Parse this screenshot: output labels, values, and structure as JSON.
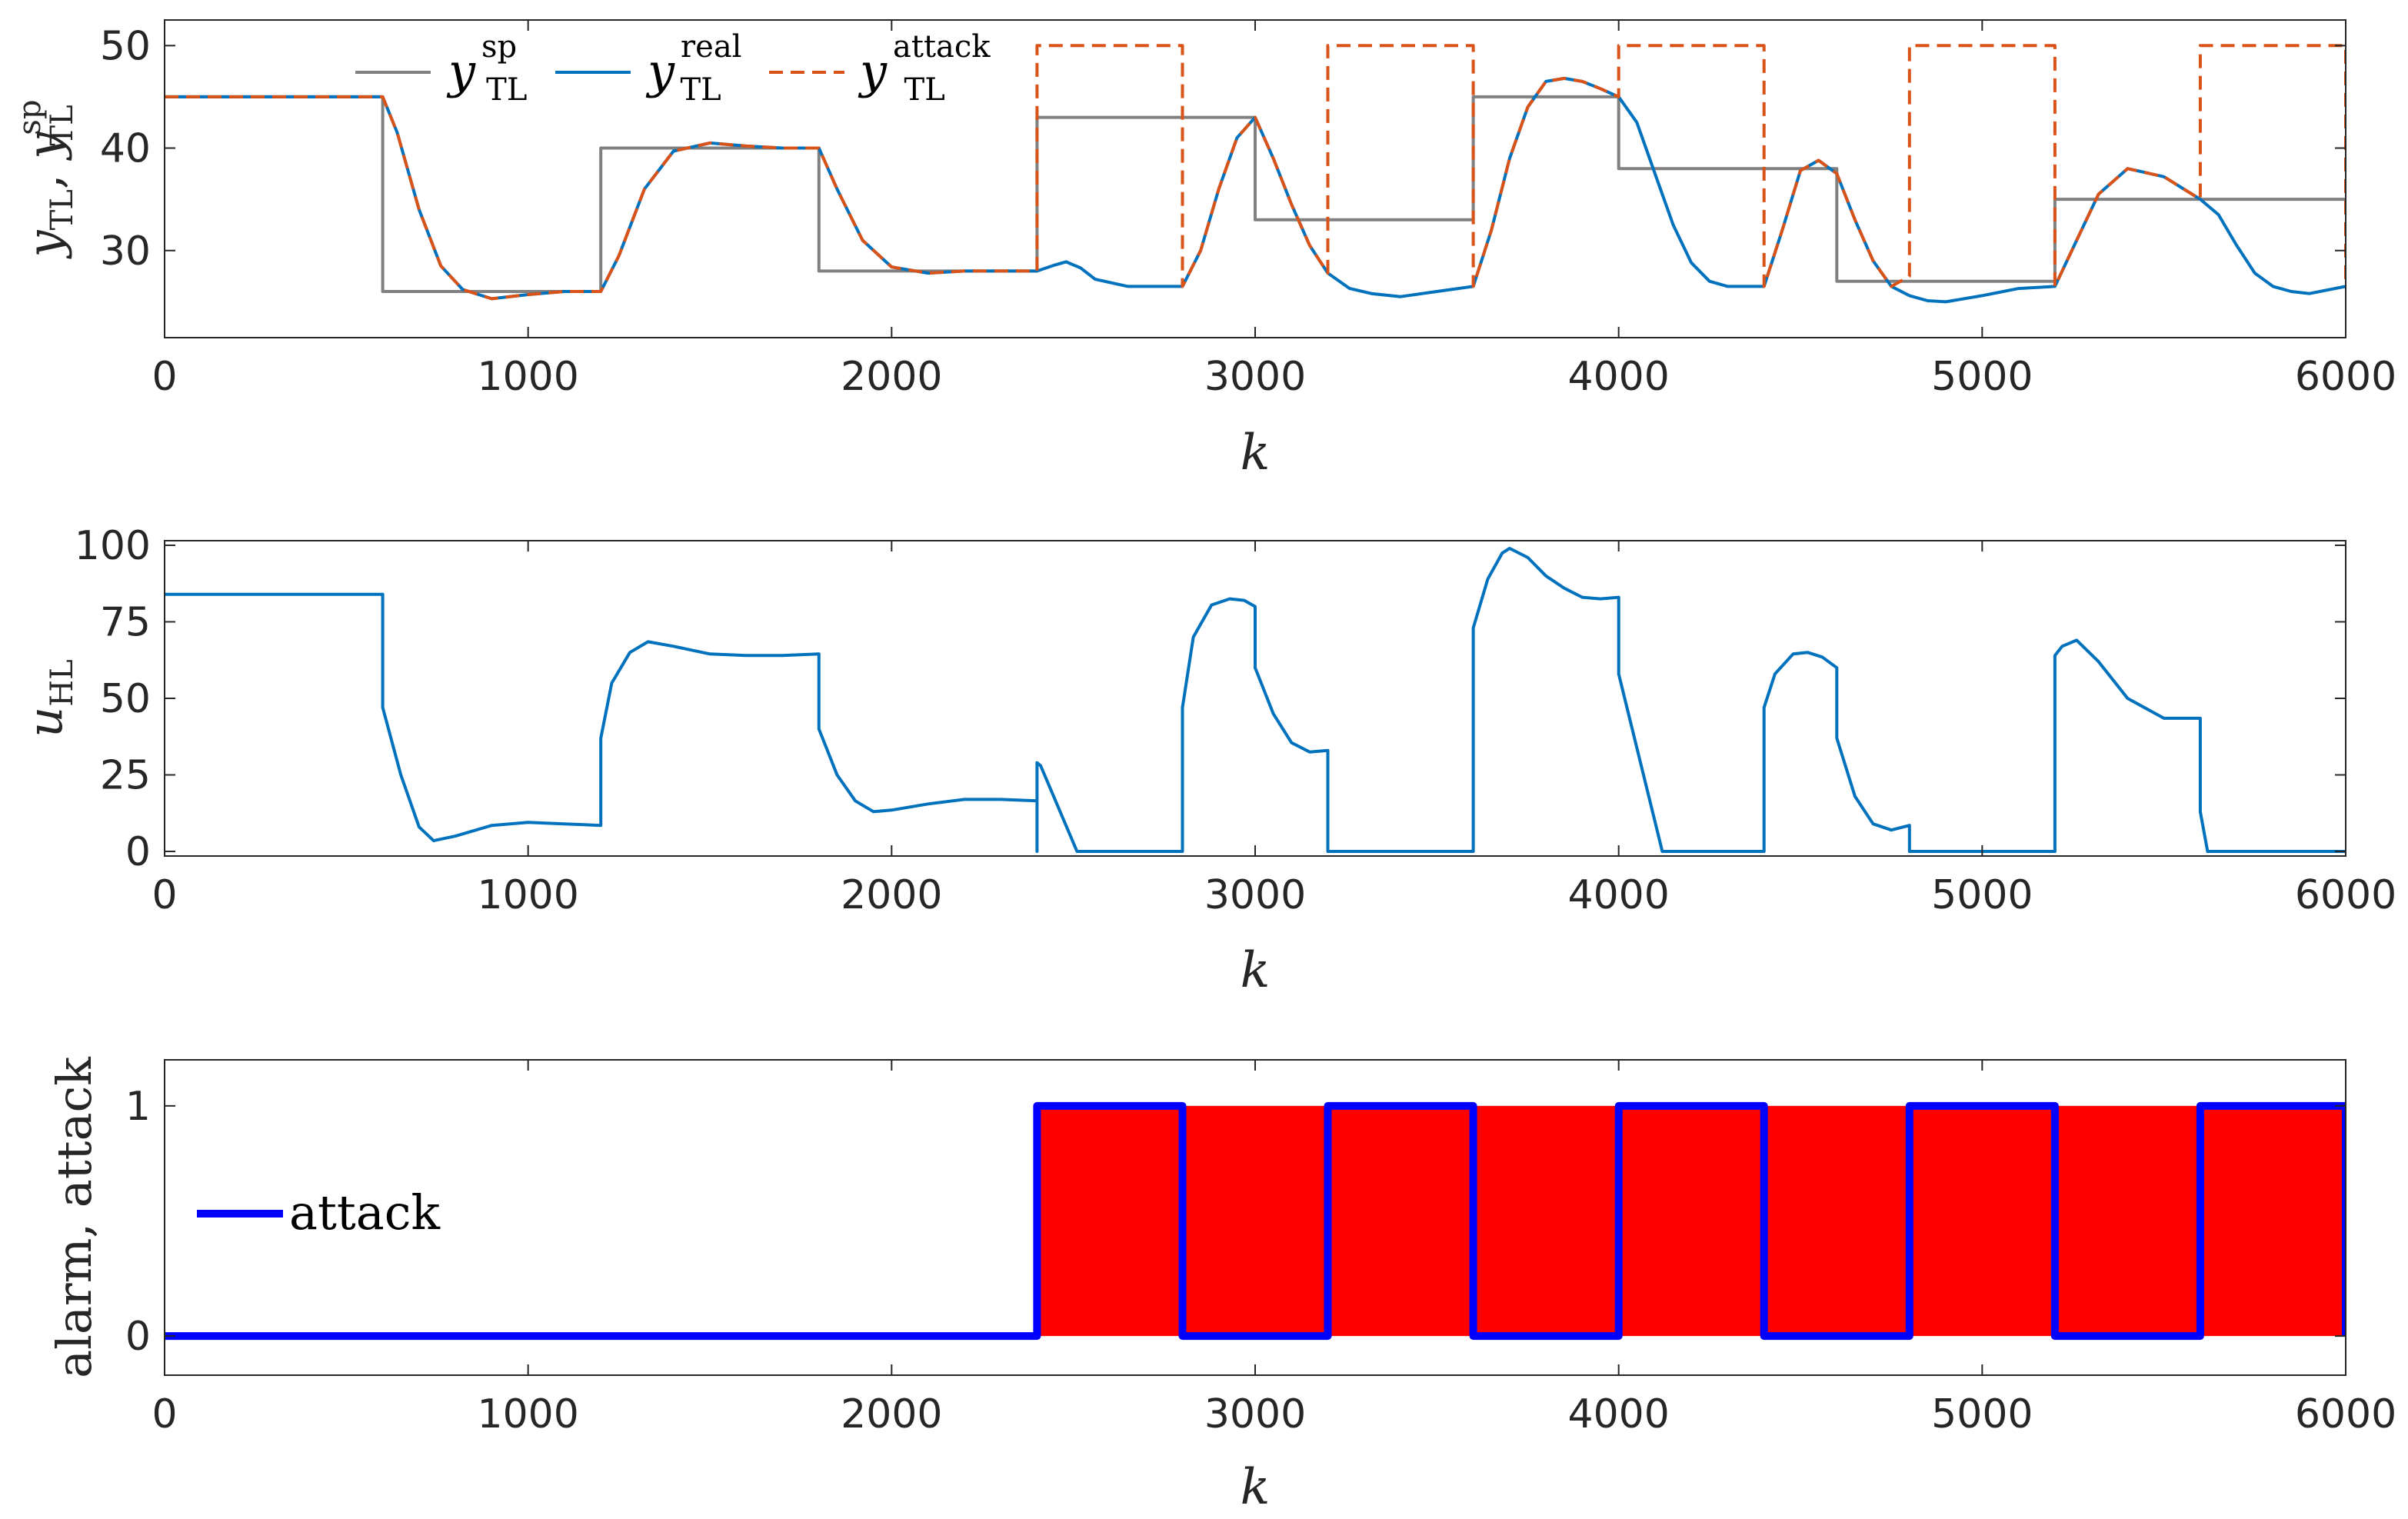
{
  "chart_data": [
    {
      "type": "line",
      "panel": "top",
      "xlabel": "k",
      "ylabel": {
        "main": "y",
        "sub": "TL",
        "main2": "y",
        "sup2": "sp",
        "sub2": "TL"
      },
      "xlim": [
        0,
        6000
      ],
      "ylim": [
        21.5,
        52.5
      ],
      "xticks": [
        0,
        1000,
        2000,
        3000,
        4000,
        5000,
        6000
      ],
      "yticks": [
        30,
        40,
        50
      ],
      "legend_position": "top",
      "legend": [
        {
          "main": "y",
          "sup": "sp",
          "sub": "TL"
        },
        {
          "main": "y",
          "sup": "real",
          "sub": "TL"
        },
        {
          "main": "y",
          "sup": "attack",
          "sub": "TL"
        }
      ],
      "series": [
        {
          "name": "y_TL^sp",
          "color": "#808080",
          "style": "solid",
          "x": [
            0,
            600,
            600,
            1200,
            1200,
            1800,
            1800,
            2400,
            2400,
            3000,
            3000,
            3600,
            3600,
            4000,
            4000,
            4600,
            4600,
            5200,
            5200,
            6000
          ],
          "y": [
            45,
            45,
            26,
            26,
            40,
            40,
            28,
            28,
            43,
            43,
            33,
            33,
            45,
            45,
            38,
            38,
            27,
            27,
            35,
            35
          ]
        },
        {
          "name": "y_TL^real",
          "color": "#0072BD",
          "style": "solid",
          "x": [
            0,
            600,
            640,
            700,
            760,
            820,
            900,
            1000,
            1100,
            1200,
            1250,
            1320,
            1400,
            1500,
            1600,
            1700,
            1800,
            1850,
            1920,
            2000,
            2100,
            2200,
            2300,
            2400,
            2450,
            2480,
            2520,
            2560,
            2650,
            2750,
            2800,
            2850,
            2900,
            2950,
            3000,
            3050,
            3100,
            3150,
            3200,
            3260,
            3320,
            3400,
            3500,
            3600,
            3650,
            3700,
            3750,
            3800,
            3850,
            3900,
            3950,
            4000,
            4050,
            4100,
            4150,
            4200,
            4250,
            4300,
            4400,
            4450,
            4500,
            4550,
            4600,
            4650,
            4700,
            4750,
            4800,
            4850,
            4900,
            5000,
            5100,
            5200,
            5260,
            5320,
            5400,
            5500,
            5600,
            5650,
            5700,
            5750,
            5800,
            5850,
            5900,
            6000
          ],
          "y": [
            45,
            45,
            41.5,
            34,
            28.5,
            26.2,
            25.3,
            25.7,
            26,
            26,
            29.5,
            36,
            39.7,
            40.5,
            40.2,
            40,
            40,
            36,
            31,
            28.4,
            27.8,
            28,
            28,
            28,
            28.6,
            28.9,
            28.3,
            27.2,
            26.5,
            26.5,
            26.5,
            30,
            36,
            41,
            43,
            39,
            34.5,
            30.5,
            27.8,
            26.3,
            25.8,
            25.5,
            26,
            26.5,
            32,
            39,
            44,
            46.5,
            46.8,
            46.5,
            45.8,
            45,
            42.5,
            37.5,
            32.5,
            28.8,
            27,
            26.5,
            26.5,
            32,
            37.8,
            38.8,
            37.5,
            33,
            29,
            26.5,
            25.6,
            25.1,
            25,
            25.6,
            26.3,
            26.5,
            31,
            35.5,
            38,
            37.2,
            35,
            33.5,
            30.5,
            27.8,
            26.5,
            26,
            25.8,
            26.5
          ]
        },
        {
          "name": "y_TL^attack",
          "color": "#D95319",
          "style": "dashed",
          "x": [
            0,
            600,
            640,
            700,
            760,
            820,
            900,
            1000,
            1100,
            1200,
            1250,
            1320,
            1400,
            1500,
            1600,
            1700,
            1800,
            1850,
            1920,
            2000,
            2100,
            2200,
            2300,
            2400,
            2400,
            2800,
            2800,
            2850,
            2900,
            2950,
            3000,
            3050,
            3100,
            3150,
            3200,
            3200,
            3600,
            3600,
            3650,
            3700,
            3750,
            3800,
            3850,
            3900,
            3950,
            4000,
            4000,
            4400,
            4400,
            4450,
            4500,
            4550,
            4600,
            4650,
            4700,
            4750,
            4800,
            4800,
            5200,
            5200,
            5260,
            5320,
            5400,
            5500,
            5600,
            5600,
            6000,
            6000
          ],
          "y": [
            45,
            45,
            41.5,
            34,
            28.5,
            26.2,
            25.3,
            25.7,
            26,
            26,
            29.5,
            36,
            39.7,
            40.5,
            40.2,
            40,
            40,
            36,
            31,
            28.4,
            27.8,
            28,
            28,
            28,
            50,
            50,
            26.5,
            30,
            36,
            41,
            43,
            39,
            34.5,
            30.5,
            27.8,
            50,
            50,
            26.5,
            32,
            39,
            44,
            46.5,
            46.8,
            46.5,
            45.8,
            45,
            50,
            50,
            26.5,
            32,
            37.8,
            38.8,
            37.5,
            33,
            29,
            26.5,
            27.5,
            50,
            50,
            26.5,
            31,
            35.5,
            38,
            37.2,
            35,
            50,
            50,
            26.5
          ]
        }
      ]
    },
    {
      "type": "line",
      "panel": "middle",
      "xlabel": "k",
      "ylabel": {
        "main": "u",
        "sub": "HL"
      },
      "xlim": [
        0,
        6000
      ],
      "ylim": [
        -1.5,
        101.5
      ],
      "xticks": [
        0,
        1000,
        2000,
        3000,
        4000,
        5000,
        6000
      ],
      "yticks": [
        0,
        25,
        50,
        75,
        100
      ],
      "series": [
        {
          "name": "u_HL",
          "color": "#0072BD",
          "style": "solid",
          "x": [
            0,
            600,
            600,
            650,
            700,
            740,
            800,
            900,
            1000,
            1100,
            1200,
            1200,
            1230,
            1280,
            1330,
            1400,
            1500,
            1600,
            1700,
            1800,
            1800,
            1850,
            1900,
            1950,
            2000,
            2100,
            2200,
            2300,
            2400,
            2400,
            2400,
            2410,
            2510,
            2800,
            2800,
            2830,
            2880,
            2930,
            2970,
            3000,
            3000,
            3050,
            3100,
            3150,
            3200,
            3200,
            3600,
            3600,
            3640,
            3680,
            3700,
            3750,
            3800,
            3850,
            3900,
            3950,
            4000,
            4000,
            4120,
            4400,
            4400,
            4430,
            4480,
            4520,
            4560,
            4600,
            4600,
            4650,
            4700,
            4750,
            4800,
            4800,
            5200,
            5200,
            5220,
            5260,
            5320,
            5400,
            5500,
            5600,
            5600,
            5620,
            6000
          ],
          "y": [
            84,
            84,
            47,
            25,
            8,
            3.5,
            5,
            8.5,
            9.5,
            9,
            8.5,
            37,
            55,
            65,
            68.5,
            67,
            64.5,
            64,
            64,
            64.5,
            40,
            25,
            16.5,
            13,
            13.5,
            15.5,
            17,
            17,
            16.5,
            0,
            29,
            28,
            0,
            0,
            47,
            70,
            80.5,
            82.5,
            82,
            80,
            60,
            45,
            35.5,
            32.5,
            33,
            0,
            0,
            73,
            89,
            97.5,
            99,
            96,
            90,
            86,
            83,
            82.5,
            83,
            58,
            0,
            0,
            47,
            58,
            64.5,
            65,
            63.5,
            60,
            37,
            18,
            9,
            7,
            8.5,
            0,
            0,
            64,
            67,
            69,
            62,
            50,
            43.5,
            43.5,
            13,
            0,
            0
          ]
        }
      ]
    },
    {
      "type": "line",
      "panel": "bottom",
      "xlabel": "k",
      "ylabel": "alarm, attack",
      "xlim": [
        0,
        6000
      ],
      "ylim": [
        -0.17,
        1.2
      ],
      "xticks": [
        0,
        1000,
        2000,
        3000,
        4000,
        5000,
        6000
      ],
      "yticks": [
        0,
        1
      ],
      "legend_position": "middle-left",
      "legend": [
        "attack"
      ],
      "alarm_region": {
        "x_start": 2400,
        "x_end": 6000,
        "value": 1,
        "color": "#FF0000"
      },
      "series": [
        {
          "name": "attack",
          "color": "#0000FF",
          "style": "solid",
          "x": [
            0,
            2400,
            2400,
            2800,
            2800,
            3200,
            3200,
            3600,
            3600,
            4000,
            4000,
            4400,
            4400,
            4800,
            4800,
            5200,
            5200,
            5600,
            5600,
            6000,
            6000
          ],
          "y": [
            0,
            0,
            1,
            1,
            0,
            0,
            1,
            1,
            0,
            0,
            1,
            1,
            0,
            0,
            1,
            1,
            0,
            0,
            1,
            1,
            0
          ]
        }
      ]
    }
  ]
}
